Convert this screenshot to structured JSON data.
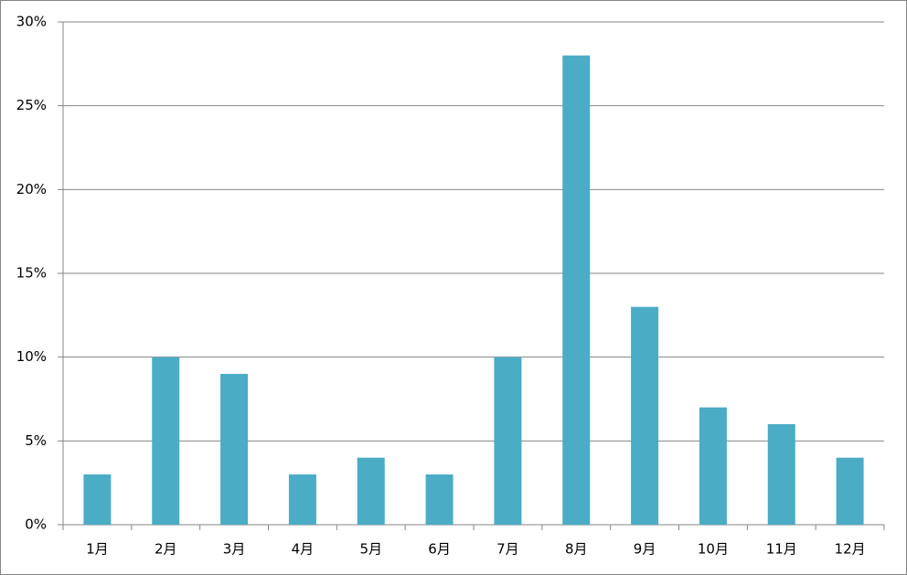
{
  "chart_data": {
    "type": "bar",
    "categories": [
      "1月",
      "2月",
      "3月",
      "4月",
      "5月",
      "6月",
      "7月",
      "8月",
      "9月",
      "10月",
      "11月",
      "12月"
    ],
    "values": [
      3,
      10,
      9,
      3,
      4,
      3,
      10,
      28,
      13,
      7,
      6,
      4
    ],
    "color": "#4bacc6",
    "ylim": [
      0,
      30
    ],
    "yticks": [
      {
        "value": 0,
        "label": "0%"
      },
      {
        "value": 5,
        "label": "5%"
      },
      {
        "value": 10,
        "label": "10%"
      },
      {
        "value": 15,
        "label": "15%"
      },
      {
        "value": 20,
        "label": "20%"
      },
      {
        "value": 25,
        "label": "25%"
      },
      {
        "value": 30,
        "label": "30%"
      }
    ],
    "grid": true
  }
}
